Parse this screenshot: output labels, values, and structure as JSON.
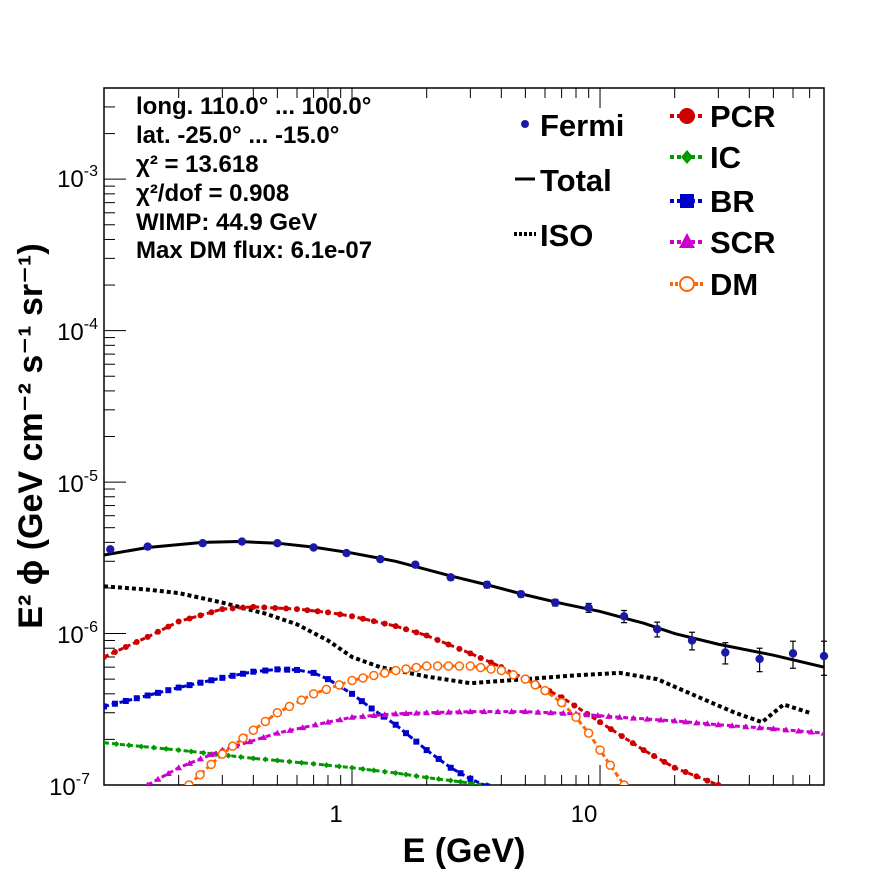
{
  "chart_data": {
    "type": "scatter",
    "xlabel": "E (GeV)",
    "ylabel": "E² ϕ (GeV cm⁻² s⁻¹ sr⁻¹)",
    "xscale": "log",
    "yscale": "log",
    "xlim": [
      0.1,
      80
    ],
    "ylim": [
      1e-07,
      0.004
    ],
    "x_ticklabels": [
      "1",
      "10"
    ],
    "y_ticklabels": [
      {
        "value": 1e-07,
        "base": "10",
        "exp": "-7"
      },
      {
        "value": 1e-06,
        "base": "10",
        "exp": "-6"
      },
      {
        "value": 1e-05,
        "base": "10",
        "exp": "-5"
      },
      {
        "value": 0.0001,
        "base": "10",
        "exp": "-4"
      },
      {
        "value": 0.001,
        "base": "10",
        "exp": "-3"
      }
    ],
    "annotations": [
      "long. 110.0° ... 100.0°",
      "lat. -25.0° ... -15.0°",
      "χ² = 13.618",
      "χ²/dof = 0.908",
      "WIMP: 44.9 GeV",
      "Max DM flux: 6.1e-07"
    ],
    "legend": {
      "placement": "top-right",
      "left_column": [
        {
          "name": "Fermi",
          "style": "points",
          "color": "#1a1aa6"
        },
        {
          "name": "Total",
          "style": "solid",
          "color": "#000000"
        },
        {
          "name": "ISO",
          "style": "dotted",
          "color": "#000000"
        }
      ],
      "right_column": [
        {
          "name": "PCR",
          "style": "dashed-circle",
          "color": "#cc0000"
        },
        {
          "name": "IC",
          "style": "dashed-diamond",
          "color": "#009900"
        },
        {
          "name": "BR",
          "style": "dashed-square",
          "color": "#0000cc"
        },
        {
          "name": "SCR",
          "style": "dashed-triangle",
          "color": "#cc00cc"
        },
        {
          "name": "DM",
          "style": "dashed-open-circle",
          "color": "#ff6600"
        }
      ]
    },
    "fermi_points": [
      {
        "x": 0.106,
        "y": 3.6e-06,
        "err": 1e-07
      },
      {
        "x": 0.15,
        "y": 3.75e-06,
        "err": 1e-07
      },
      {
        "x": 0.25,
        "y": 3.95e-06,
        "err": 1e-07
      },
      {
        "x": 0.36,
        "y": 4.05e-06,
        "err": 1e-07
      },
      {
        "x": 0.5,
        "y": 3.95e-06,
        "err": 1e-07
      },
      {
        "x": 0.7,
        "y": 3.7e-06,
        "err": 1e-07
      },
      {
        "x": 0.95,
        "y": 3.4e-06,
        "err": 1e-07
      },
      {
        "x": 1.3,
        "y": 3.1e-06,
        "err": 1e-07
      },
      {
        "x": 1.8,
        "y": 2.85e-06,
        "err": 1e-07
      },
      {
        "x": 2.5,
        "y": 2.35e-06,
        "err": 1e-07
      },
      {
        "x": 3.5,
        "y": 2.1e-06,
        "err": 1e-07
      },
      {
        "x": 4.8,
        "y": 1.82e-06,
        "err": 8e-08
      },
      {
        "x": 6.6,
        "y": 1.6e-06,
        "err": 8e-08
      },
      {
        "x": 9,
        "y": 1.48e-06,
        "err": 1e-07
      },
      {
        "x": 12.5,
        "y": 1.3e-06,
        "err": 1.2e-07
      },
      {
        "x": 17,
        "y": 1.07e-06,
        "err": 1.2e-07
      },
      {
        "x": 23.5,
        "y": 9e-07,
        "err": 1.2e-07
      },
      {
        "x": 32,
        "y": 7.5e-07,
        "err": 1.2e-07
      },
      {
        "x": 44,
        "y": 6.8e-07,
        "err": 1.2e-07
      },
      {
        "x": 60,
        "y": 7.4e-07,
        "err": 1.5e-07
      },
      {
        "x": 80,
        "y": 7.1e-07,
        "err": 1.8e-07
      }
    ],
    "series": [
      {
        "name": "Total",
        "color": "#000000",
        "style": "solid",
        "marker": "none",
        "x": [
          0.1,
          0.15,
          0.25,
          0.35,
          0.5,
          0.7,
          1,
          1.5,
          2.5,
          3.5,
          5,
          7,
          10,
          15,
          20,
          30,
          50,
          80
        ],
        "y": [
          3.3e-06,
          3.7e-06,
          4e-06,
          4.05e-06,
          3.95e-06,
          3.72e-06,
          3.4e-06,
          3e-06,
          2.4e-06,
          2.1e-06,
          1.8e-06,
          1.58e-06,
          1.4e-06,
          1.17e-06,
          1e-06,
          8.5e-07,
          7.2e-07,
          6e-07
        ]
      },
      {
        "name": "ISO",
        "color": "#000000",
        "style": "dotted",
        "marker": "none",
        "x": [
          0.1,
          0.15,
          0.2,
          0.3,
          0.45,
          0.6,
          0.8,
          1,
          1.3,
          2,
          3,
          5,
          8,
          12,
          17,
          25,
          35,
          45,
          55,
          70
        ],
        "y": [
          2.05e-06,
          1.95e-06,
          1.85e-06,
          1.6e-06,
          1.35e-06,
          1.15e-06,
          9e-07,
          7e-07,
          6e-07,
          5.2e-07,
          4.7e-07,
          5e-07,
          5.3e-07,
          5.5e-07,
          5e-07,
          3.8e-07,
          3e-07,
          2.6e-07,
          3.4e-07,
          3e-07
        ]
      },
      {
        "name": "PCR",
        "color": "#cc0000",
        "style": "dashed",
        "marker": "circle",
        "x": [
          0.1,
          0.15,
          0.2,
          0.3,
          0.4,
          0.6,
          0.8,
          1,
          1.5,
          2,
          3,
          4,
          5,
          7,
          10,
          15,
          20,
          30
        ],
        "y": [
          7e-07,
          9.5e-07,
          1.2e-06,
          1.45e-06,
          1.5e-06,
          1.45e-06,
          1.38e-06,
          1.3e-06,
          1.12e-06,
          9.7e-07,
          7.4e-07,
          6e-07,
          5e-07,
          3.8e-07,
          2.6e-07,
          1.7e-07,
          1.3e-07,
          1e-07
        ]
      },
      {
        "name": "IC",
        "color": "#009900",
        "style": "dashed",
        "marker": "diamond",
        "x": [
          0.1,
          0.2,
          0.4,
          0.7,
          1,
          1.5,
          2,
          2.5,
          3,
          3.5
        ],
        "y": [
          1.9e-07,
          1.7e-07,
          1.5e-07,
          1.38e-07,
          1.3e-07,
          1.2e-07,
          1.12e-07,
          1.07e-07,
          1.03e-07,
          1e-07
        ]
      },
      {
        "name": "BR",
        "color": "#0000cc",
        "style": "dashed",
        "marker": "square",
        "x": [
          0.1,
          0.15,
          0.2,
          0.3,
          0.4,
          0.5,
          0.6,
          0.7,
          0.8,
          1,
          1.2,
          1.5,
          2,
          2.5,
          3,
          3.5
        ],
        "y": [
          3.3e-07,
          3.9e-07,
          4.4e-07,
          5.1e-07,
          5.6e-07,
          5.8e-07,
          5.75e-07,
          5.5e-07,
          5e-07,
          4e-07,
          3.2e-07,
          2.5e-07,
          1.7e-07,
          1.3e-07,
          1.1e-07,
          9.8e-08
        ]
      },
      {
        "name": "SCR",
        "color": "#cc00cc",
        "style": "dashed",
        "marker": "triangle",
        "x": [
          0.15,
          0.2,
          0.3,
          0.5,
          0.8,
          1,
          1.5,
          2,
          3,
          5,
          8,
          12,
          20,
          30,
          50,
          80
        ],
        "y": [
          1e-07,
          1.3e-07,
          1.7e-07,
          2.2e-07,
          2.6e-07,
          2.8e-07,
          2.95e-07,
          3e-07,
          3.05e-07,
          3.05e-07,
          2.95e-07,
          2.8e-07,
          2.65e-07,
          2.5e-07,
          2.35e-07,
          2.2e-07
        ]
      },
      {
        "name": "DM",
        "color": "#ff6600",
        "style": "dashed",
        "marker": "open-circle",
        "x": [
          0.22,
          0.3,
          0.4,
          0.5,
          0.7,
          1,
          1.5,
          2,
          3,
          4,
          5,
          6,
          7,
          8,
          9,
          10,
          11,
          12.5
        ],
        "y": [
          1e-07,
          1.6e-07,
          2.3e-07,
          3e-07,
          4e-07,
          4.9e-07,
          5.7e-07,
          6.1e-07,
          6.1e-07,
          5.7e-07,
          5e-07,
          4.2e-07,
          3.5e-07,
          2.8e-07,
          2.2e-07,
          1.7e-07,
          1.35e-07,
          1e-07
        ]
      }
    ]
  }
}
